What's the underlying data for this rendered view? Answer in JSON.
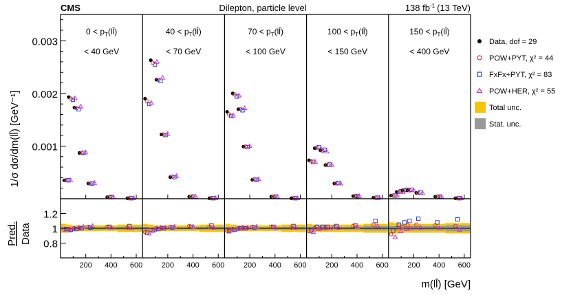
{
  "header": {
    "cms": "CMS",
    "subtitle": "Dilepton, particle level",
    "lumi": "138 fb",
    "lumi_sup": "-1",
    "energy": "(13 TeV)"
  },
  "colors": {
    "data": "#000000",
    "powpyt": "#e8321e",
    "fxfxpyt": "#1f3fd6",
    "powher": "#d32fd3",
    "total_unc": "#f7c600",
    "stat_unc": "#999999"
  },
  "legend": {
    "entries": [
      {
        "id": "data",
        "marker": "dot-icon",
        "text": "Data, dof = 29"
      },
      {
        "id": "powpyt",
        "marker": "circle-icon",
        "text": "POW+PYT, χ² = 44"
      },
      {
        "id": "fxfxpyt",
        "marker": "square-icon",
        "text": "FxFx+PYT, χ² = 83"
      },
      {
        "id": "powher",
        "marker": "triangle-icon",
        "text": "POW+HER, χ² = 55"
      },
      {
        "id": "total",
        "marker": "yellow-box-icon",
        "text": "Total unc."
      },
      {
        "id": "stat",
        "marker": "gray-box-icon",
        "text": "Stat. unc."
      }
    ]
  },
  "chart_data": {
    "type": "scatter",
    "title": "Dilepton, particle level",
    "ylabel_main": "1/σ dσ/dm(ll̄) [GeV⁻¹]",
    "ylabel_ratio_top": "Pred.",
    "ylabel_ratio_bottom": "Data",
    "xlabel": "m(ll̄) [GeV]",
    "main_ylim": [
      0,
      0.0035
    ],
    "main_yticks": [
      0.001,
      0.002,
      0.003
    ],
    "main_ytick_labels": [
      "0.001",
      "0.002",
      "0.003"
    ],
    "ratio_ylim": [
      0.6,
      1.4
    ],
    "ratio_yticks": [
      0.8,
      1.0,
      1.2
    ],
    "ratio_ytick_labels": [
      "0.8",
      "1",
      "1.2"
    ],
    "xlim": [
      0,
      650
    ],
    "xticks": [
      200,
      400,
      600
    ],
    "xtick_labels": [
      "200",
      "400",
      "600"
    ],
    "panels": [
      {
        "label_top": "0 < p",
        "label_sub": "T",
        "label_var": "(ll̄)",
        "label_bottom": "< 40 GeV",
        "bins": [
          {
            "x": 30,
            "data": 0.00035,
            "powpyt": 0.00035,
            "fxfxpyt": 0.00035,
            "powher": 0.00035,
            "r_powpyt": 0.98,
            "r_fxfxpyt": 0.99,
            "r_powher": 0.97,
            "tot": 0.06,
            "stat": 0.02
          },
          {
            "x": 65,
            "data": 0.00193,
            "powpyt": 0.0019,
            "fxfxpyt": 0.00188,
            "powher": 0.00191,
            "r_powpyt": 0.99,
            "r_fxfxpyt": 0.98,
            "r_powher": 0.99,
            "tot": 0.05,
            "stat": 0.015
          },
          {
            "x": 110,
            "data": 0.00173,
            "powpyt": 0.00172,
            "fxfxpyt": 0.0017,
            "powher": 0.00175,
            "r_powpyt": 1.0,
            "r_fxfxpyt": 0.99,
            "r_powher": 1.01,
            "tot": 0.04,
            "stat": 0.015
          },
          {
            "x": 150,
            "data": 0.00087,
            "powpyt": 0.00087,
            "fxfxpyt": 0.00087,
            "powher": 0.00088,
            "r_powpyt": 1.0,
            "r_fxfxpyt": 1.0,
            "r_powher": 1.02,
            "tot": 0.04,
            "stat": 0.015
          },
          {
            "x": 220,
            "data": 0.00029,
            "powpyt": 0.00029,
            "fxfxpyt": 0.00029,
            "powher": 0.0003,
            "r_powpyt": 1.02,
            "r_fxfxpyt": 1.01,
            "r_powher": 1.03,
            "tot": 0.04,
            "stat": 0.015
          },
          {
            "x": 370,
            "data": 3e-05,
            "powpyt": 3e-05,
            "fxfxpyt": 3e-05,
            "powher": 3e-05,
            "r_powpyt": 1.02,
            "r_fxfxpyt": 1.02,
            "r_powher": 1.01,
            "tot": 0.04,
            "stat": 0.015
          },
          {
            "x": 530,
            "data": 1e-05,
            "powpyt": 1e-05,
            "fxfxpyt": 1e-05,
            "powher": 1e-05,
            "r_powpyt": 1.01,
            "r_fxfxpyt": 1.03,
            "r_powher": 1.0,
            "tot": 0.05,
            "stat": 0.02
          }
        ]
      },
      {
        "label_top": "40 < p",
        "label_sub": "T",
        "label_var": "(ll̄)",
        "label_bottom": "< 70 GeV",
        "bins": [
          {
            "x": 20,
            "data": 0.0019,
            "powpyt": 0.00185,
            "fxfxpyt": 0.0018,
            "powher": 0.00182,
            "r_powpyt": 0.95,
            "r_fxfxpyt": 0.94,
            "r_powher": 0.93,
            "tot": 0.06,
            "stat": 0.02
          },
          {
            "x": 65,
            "data": 0.00263,
            "powpyt": 0.00258,
            "fxfxpyt": 0.00255,
            "powher": 0.0026,
            "r_powpyt": 0.98,
            "r_fxfxpyt": 0.97,
            "r_powher": 0.98,
            "tot": 0.05,
            "stat": 0.015
          },
          {
            "x": 110,
            "data": 0.00226,
            "powpyt": 0.00226,
            "fxfxpyt": 0.00224,
            "powher": 0.0023,
            "r_powpyt": 1.0,
            "r_fxfxpyt": 0.99,
            "r_powher": 1.01,
            "tot": 0.04,
            "stat": 0.015
          },
          {
            "x": 150,
            "data": 0.00122,
            "powpyt": 0.00122,
            "fxfxpyt": 0.00121,
            "powher": 0.00123,
            "r_powpyt": 1.0,
            "r_fxfxpyt": 1.0,
            "r_powher": 1.01,
            "tot": 0.04,
            "stat": 0.015
          },
          {
            "x": 220,
            "data": 0.00041,
            "powpyt": 0.00042,
            "fxfxpyt": 0.00041,
            "powher": 0.00043,
            "r_powpyt": 1.02,
            "r_fxfxpyt": 1.01,
            "r_powher": 1.02,
            "tot": 0.04,
            "stat": 0.015
          },
          {
            "x": 370,
            "data": 4e-05,
            "powpyt": 4e-05,
            "fxfxpyt": 4e-05,
            "powher": 4e-05,
            "r_powpyt": 1.03,
            "r_fxfxpyt": 1.02,
            "r_powher": 1.02,
            "tot": 0.04,
            "stat": 0.015
          },
          {
            "x": 530,
            "data": 1e-05,
            "powpyt": 1e-05,
            "fxfxpyt": 1e-05,
            "powher": 1e-05,
            "r_powpyt": 1.02,
            "r_fxfxpyt": 1.04,
            "r_powher": 1.01,
            "tot": 0.05,
            "stat": 0.02
          }
        ]
      },
      {
        "label_top": "70 < p",
        "label_sub": "T",
        "label_var": "(ll̄)",
        "label_bottom": "< 100 GeV",
        "bins": [
          {
            "x": 20,
            "data": 0.00165,
            "powpyt": 0.0016,
            "fxfxpyt": 0.00157,
            "powher": 0.00158,
            "r_powpyt": 0.97,
            "r_fxfxpyt": 0.96,
            "r_powher": 0.97,
            "tot": 0.06,
            "stat": 0.02
          },
          {
            "x": 65,
            "data": 0.002,
            "powpyt": 0.00198,
            "fxfxpyt": 0.00194,
            "powher": 0.00196,
            "r_powpyt": 0.99,
            "r_fxfxpyt": 0.98,
            "r_powher": 0.99,
            "tot": 0.05,
            "stat": 0.015
          },
          {
            "x": 110,
            "data": 0.0017,
            "powpyt": 0.0017,
            "fxfxpyt": 0.00168,
            "powher": 0.00172,
            "r_powpyt": 1.0,
            "r_fxfxpyt": 1.0,
            "r_powher": 1.01,
            "tot": 0.04,
            "stat": 0.015
          },
          {
            "x": 150,
            "data": 0.00099,
            "powpyt": 0.00099,
            "fxfxpyt": 0.00098,
            "powher": 0.001,
            "r_powpyt": 1.0,
            "r_fxfxpyt": 1.0,
            "r_powher": 1.01,
            "tot": 0.04,
            "stat": 0.015
          },
          {
            "x": 220,
            "data": 0.00036,
            "powpyt": 0.00037,
            "fxfxpyt": 0.00036,
            "powher": 0.00037,
            "r_powpyt": 1.02,
            "r_fxfxpyt": 1.01,
            "r_powher": 1.02,
            "tot": 0.04,
            "stat": 0.015
          },
          {
            "x": 370,
            "data": 4e-05,
            "powpyt": 4e-05,
            "fxfxpyt": 4e-05,
            "powher": 4e-05,
            "r_powpyt": 1.02,
            "r_fxfxpyt": 1.02,
            "r_powher": 1.01,
            "tot": 0.04,
            "stat": 0.015
          },
          {
            "x": 530,
            "data": 1e-05,
            "powpyt": 1e-05,
            "fxfxpyt": 1e-05,
            "powher": 1e-05,
            "r_powpyt": 1.01,
            "r_fxfxpyt": 1.03,
            "r_powher": 1.01,
            "tot": 0.05,
            "stat": 0.02
          }
        ]
      },
      {
        "label_top": "100 < p",
        "label_sub": "T",
        "label_var": "(ll̄)",
        "label_bottom": "< 150 GeV",
        "bins": [
          {
            "x": 20,
            "data": 0.00073,
            "powpyt": 0.00071,
            "fxfxpyt": 0.0007,
            "powher": 0.0007,
            "r_powpyt": 0.96,
            "r_fxfxpyt": 0.97,
            "r_powher": 0.95,
            "tot": 0.06,
            "stat": 0.02
          },
          {
            "x": 65,
            "data": 0.00096,
            "powpyt": 0.00097,
            "fxfxpyt": 0.00098,
            "powher": 0.00095,
            "r_powpyt": 1.0,
            "r_fxfxpyt": 1.02,
            "r_powher": 0.99,
            "tot": 0.05,
            "stat": 0.02
          },
          {
            "x": 110,
            "data": 0.00092,
            "powpyt": 0.00091,
            "fxfxpyt": 0.00093,
            "powher": 0.0009,
            "r_powpyt": 1.0,
            "r_fxfxpyt": 1.02,
            "r_powher": 1.0,
            "tot": 0.05,
            "stat": 0.02
          },
          {
            "x": 150,
            "data": 0.00064,
            "powpyt": 0.00064,
            "fxfxpyt": 0.00065,
            "powher": 0.00064,
            "r_powpyt": 1.01,
            "r_fxfxpyt": 1.02,
            "r_powher": 1.0,
            "tot": 0.05,
            "stat": 0.02
          },
          {
            "x": 220,
            "data": 0.00029,
            "powpyt": 0.00029,
            "fxfxpyt": 0.0003,
            "powher": 0.00029,
            "r_powpyt": 1.02,
            "r_fxfxpyt": 1.03,
            "r_powher": 1.01,
            "tot": 0.05,
            "stat": 0.02
          },
          {
            "x": 370,
            "data": 5e-05,
            "powpyt": 5e-05,
            "fxfxpyt": 5e-05,
            "powher": 5e-05,
            "r_powpyt": 1.03,
            "r_fxfxpyt": 1.04,
            "r_powher": 1.02,
            "tot": 0.05,
            "stat": 0.02
          },
          {
            "x": 530,
            "data": 2e-05,
            "powpyt": 2e-05,
            "fxfxpyt": 2e-05,
            "powher": 2e-05,
            "r_powpyt": 1.05,
            "r_fxfxpyt": 1.1,
            "r_powher": 1.03,
            "tot": 0.06,
            "stat": 0.03
          }
        ]
      },
      {
        "label_top": "150 < p",
        "label_sub": "T",
        "label_var": "(ll̄)",
        "label_bottom": "< 400 GeV",
        "bins": [
          {
            "x": 20,
            "data": 6e-05,
            "powpyt": 6e-05,
            "fxfxpyt": 6e-05,
            "powher": 6e-05,
            "r_powpyt": 0.92,
            "r_fxfxpyt": 0.97,
            "r_powher": 0.88,
            "tot": 0.08,
            "stat": 0.03
          },
          {
            "x": 65,
            "data": 0.00013,
            "powpyt": 0.00013,
            "fxfxpyt": 0.00014,
            "powher": 0.00013,
            "r_powpyt": 1.0,
            "r_fxfxpyt": 1.05,
            "r_powher": 0.96,
            "tot": 0.07,
            "stat": 0.03
          },
          {
            "x": 110,
            "data": 0.00016,
            "powpyt": 0.00016,
            "fxfxpyt": 0.00017,
            "powher": 0.00016,
            "r_powpyt": 1.02,
            "r_fxfxpyt": 1.08,
            "r_powher": 0.99,
            "tot": 0.06,
            "stat": 0.03
          },
          {
            "x": 150,
            "data": 0.00016,
            "powpyt": 0.00016,
            "fxfxpyt": 0.00017,
            "powher": 0.00016,
            "r_powpyt": 1.04,
            "r_fxfxpyt": 1.1,
            "r_powher": 1.0,
            "tot": 0.06,
            "stat": 0.03
          },
          {
            "x": 220,
            "data": 0.00011,
            "powpyt": 0.00011,
            "fxfxpyt": 0.00012,
            "powher": 0.00011,
            "r_powpyt": 1.05,
            "r_fxfxpyt": 1.13,
            "r_powher": 1.01,
            "tot": 0.06,
            "stat": 0.03
          },
          {
            "x": 370,
            "data": 4e-05,
            "powpyt": 4e-05,
            "fxfxpyt": 4e-05,
            "powher": 4e-05,
            "r_powpyt": 1.04,
            "r_fxfxpyt": 1.08,
            "r_powher": 1.0,
            "tot": 0.06,
            "stat": 0.03
          },
          {
            "x": 530,
            "data": 1e-05,
            "powpyt": 1e-05,
            "fxfxpyt": 1e-05,
            "powher": 1e-05,
            "r_powpyt": 1.03,
            "r_fxfxpyt": 1.12,
            "r_powher": 0.98,
            "tot": 0.07,
            "stat": 0.04
          }
        ]
      }
    ]
  }
}
